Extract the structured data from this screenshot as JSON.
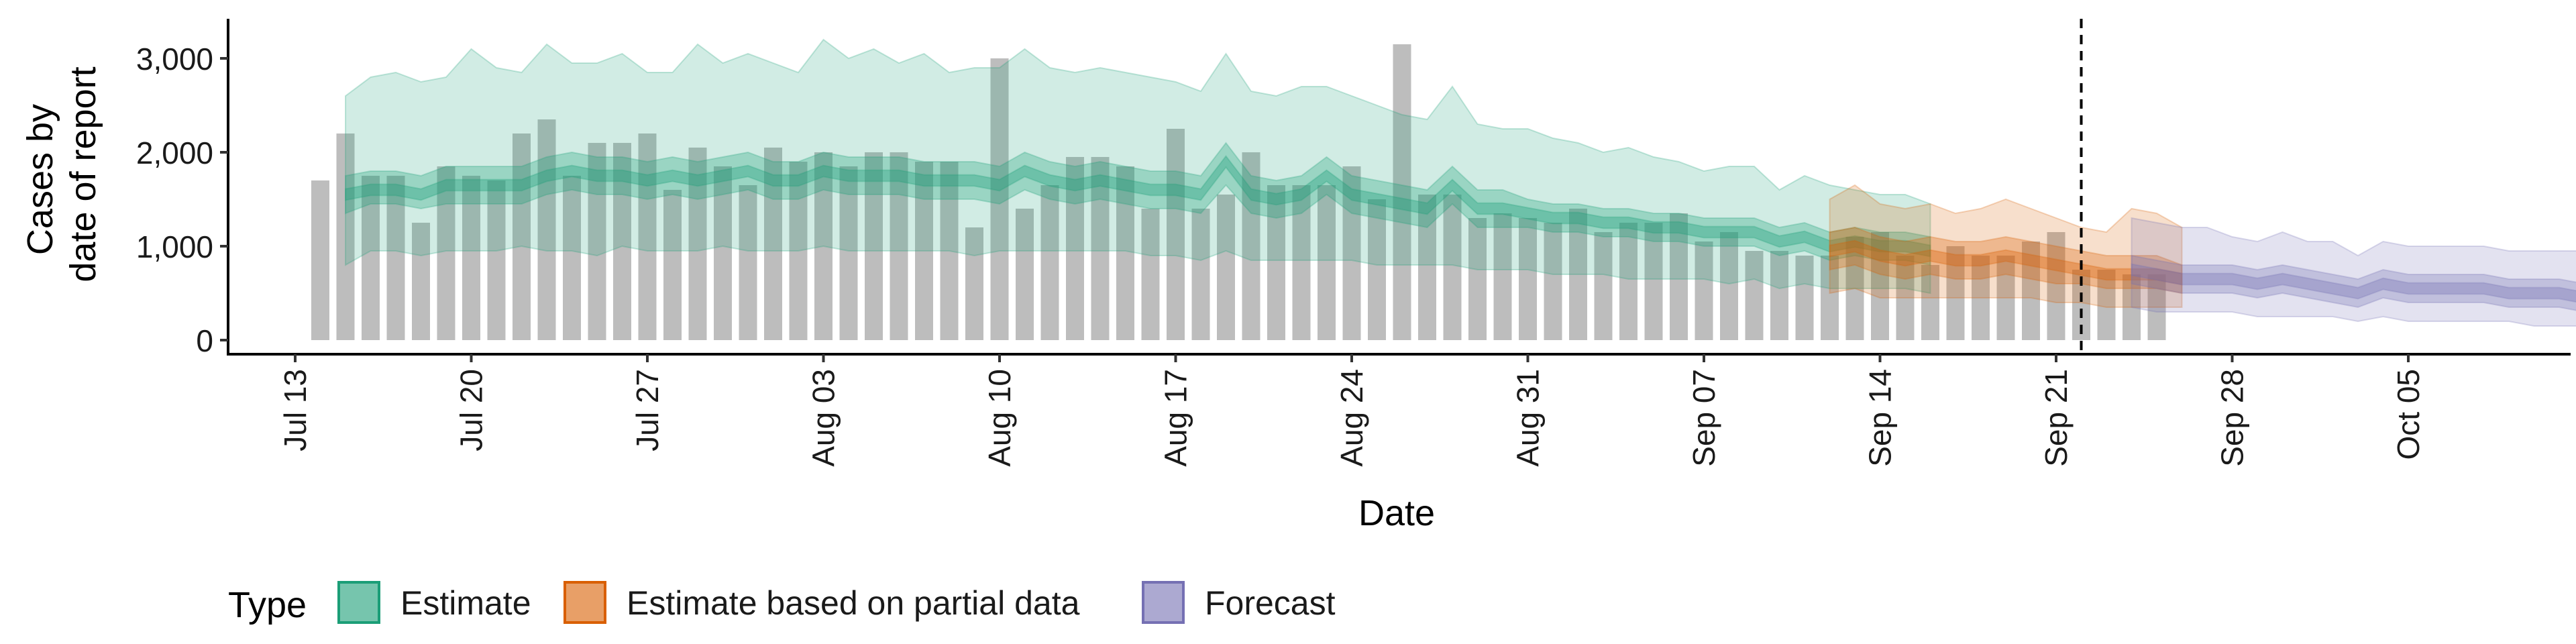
{
  "chart_data": {
    "type": "bar",
    "title": "",
    "xlabel": "Date",
    "ylabel": "Cases by date of report",
    "ylabel_lines": [
      "Cases by",
      "date of report"
    ],
    "x_ticks": [
      "Jul 13",
      "Jul 20",
      "Jul 27",
      "Aug 03",
      "Aug 10",
      "Aug 17",
      "Aug 24",
      "Aug 31",
      "Sep 07",
      "Sep 14",
      "Sep 21",
      "Sep 28",
      "Oct 05"
    ],
    "x_tick_dates": [
      "2020-07-13",
      "2020-07-20",
      "2020-07-27",
      "2020-08-03",
      "2020-08-10",
      "2020-08-17",
      "2020-08-24",
      "2020-08-31",
      "2020-09-07",
      "2020-09-14",
      "2020-09-21",
      "2020-09-28",
      "2020-10-05"
    ],
    "y_ticks": [
      "0",
      "1,000",
      "2,000",
      "3,000"
    ],
    "y_tick_values": [
      0,
      1000,
      2000,
      3000
    ],
    "xlim": [
      "2020-07-11",
      "2020-10-11"
    ],
    "ylim": [
      0,
      3400
    ],
    "grid": false,
    "vline_date": "2020-09-22",
    "vline_style": "dashed",
    "legend": {
      "position": "bottom",
      "title": "Type",
      "entries": [
        {
          "label": "Estimate",
          "color": "#1b9e77"
        },
        {
          "label": "Estimate based on partial data",
          "color": "#d95f02"
        },
        {
          "label": "Forecast",
          "color": "#7570b3"
        }
      ]
    },
    "bars": {
      "name": "Reported cases",
      "color": "#bdbdbd",
      "start_date": "2020-07-14",
      "values": [
        1700,
        2200,
        1750,
        1750,
        1250,
        1850,
        1750,
        1700,
        2200,
        2350,
        1750,
        2100,
        2100,
        2200,
        1600,
        2050,
        1850,
        1650,
        2050,
        1900,
        2000,
        1850,
        2000,
        2000,
        1900,
        1900,
        1200,
        3000,
        1400,
        1650,
        1950,
        1950,
        1850,
        1400,
        2250,
        1400,
        1550,
        2000,
        1650,
        1650,
        1650,
        1850,
        1500,
        3150,
        1550,
        1550,
        1300,
        1350,
        1300,
        1250,
        1400,
        1150,
        1250,
        1250,
        1350,
        1050,
        1150,
        950,
        950,
        900,
        900,
        1100,
        1150,
        900,
        800,
        1000,
        900,
        900,
        1050,
        1150,
        750,
        750,
        700,
        700
      ]
    },
    "series": [
      {
        "name": "Estimate",
        "color": "#1b9e77",
        "start_date": "2020-07-15",
        "median": [
          1550,
          1600,
          1600,
          1550,
          1650,
          1650,
          1650,
          1650,
          1750,
          1800,
          1750,
          1750,
          1700,
          1750,
          1700,
          1750,
          1800,
          1700,
          1700,
          1800,
          1750,
          1750,
          1750,
          1700,
          1700,
          1700,
          1650,
          1800,
          1700,
          1650,
          1700,
          1650,
          1600,
          1600,
          1550,
          1900,
          1550,
          1500,
          1550,
          1750,
          1550,
          1500,
          1450,
          1400,
          1650,
          1400,
          1400,
          1350,
          1300,
          1300,
          1250,
          1250,
          1200,
          1200,
          1150,
          1150,
          1150,
          1050,
          1100,
          1000,
          1050,
          1000,
          1000,
          950
        ],
        "lower_50": [
          1350,
          1450,
          1450,
          1400,
          1450,
          1450,
          1450,
          1450,
          1550,
          1600,
          1550,
          1550,
          1500,
          1550,
          1500,
          1550,
          1600,
          1500,
          1500,
          1600,
          1550,
          1550,
          1550,
          1500,
          1500,
          1500,
          1450,
          1600,
          1500,
          1450,
          1500,
          1450,
          1400,
          1400,
          1350,
          1650,
          1350,
          1300,
          1350,
          1550,
          1350,
          1300,
          1250,
          1200,
          1450,
          1200,
          1200,
          1200,
          1150,
          1150,
          1100,
          1100,
          1050,
          1050,
          1000,
          1000,
          1000,
          900,
          950,
          850,
          900,
          850,
          850,
          800
        ],
        "upper_50": [
          1750,
          1800,
          1800,
          1750,
          1850,
          1850,
          1850,
          1850,
          1950,
          2000,
          1950,
          1950,
          1900,
          1950,
          1900,
          1950,
          2000,
          1900,
          1900,
          2000,
          1950,
          1950,
          1950,
          1900,
          1900,
          1900,
          1850,
          2000,
          1900,
          1850,
          1900,
          1850,
          1800,
          1800,
          1750,
          2100,
          1750,
          1700,
          1750,
          1950,
          1750,
          1700,
          1650,
          1600,
          1850,
          1600,
          1600,
          1500,
          1450,
          1450,
          1400,
          1400,
          1350,
          1350,
          1300,
          1300,
          1300,
          1200,
          1250,
          1150,
          1200,
          1150,
          1150,
          1100
        ],
        "lower_90": [
          800,
          950,
          950,
          900,
          950,
          950,
          950,
          1000,
          950,
          950,
          900,
          1000,
          950,
          950,
          950,
          1000,
          950,
          950,
          950,
          1000,
          950,
          950,
          950,
          950,
          950,
          900,
          950,
          950,
          950,
          950,
          950,
          950,
          900,
          900,
          850,
          950,
          850,
          850,
          850,
          850,
          850,
          800,
          800,
          800,
          800,
          750,
          750,
          750,
          700,
          700,
          700,
          650,
          650,
          650,
          650,
          600,
          650,
          550,
          600,
          550,
          550,
          550,
          550,
          500
        ],
        "upper_90": [
          2600,
          2800,
          2850,
          2750,
          2800,
          3100,
          2900,
          2850,
          3150,
          2950,
          2950,
          3050,
          2850,
          2850,
          3150,
          2950,
          3050,
          2950,
          2850,
          3200,
          3000,
          3100,
          2950,
          3050,
          2850,
          2900,
          2900,
          3100,
          2900,
          2850,
          2900,
          2850,
          2800,
          2750,
          2650,
          3050,
          2650,
          2600,
          2700,
          2700,
          2600,
          2500,
          2400,
          2350,
          2700,
          2300,
          2250,
          2250,
          2150,
          2100,
          2000,
          2050,
          1950,
          1900,
          1800,
          1850,
          1850,
          1600,
          1750,
          1650,
          1600,
          1550,
          1550,
          1450
        ]
      },
      {
        "name": "Estimate based on partial data",
        "color": "#d95f02",
        "start_date": "2020-09-12",
        "median": [
          950,
          1000,
          900,
          850,
          900,
          850,
          850,
          900,
          850,
          800,
          750,
          700,
          700,
          700,
          650
        ],
        "lower_50": [
          750,
          800,
          700,
          650,
          700,
          650,
          650,
          700,
          650,
          600,
          600,
          550,
          550,
          550,
          500
        ],
        "upper_50": [
          1150,
          1200,
          1100,
          1050,
          1100,
          1050,
          1050,
          1100,
          1050,
          1000,
          950,
          900,
          900,
          900,
          800
        ],
        "lower_90": [
          500,
          550,
          450,
          450,
          450,
          450,
          450,
          450,
          450,
          400,
          400,
          350,
          350,
          350,
          350
        ],
        "upper_90": [
          1500,
          1650,
          1450,
          1400,
          1450,
          1350,
          1400,
          1500,
          1400,
          1300,
          1200,
          1150,
          1400,
          1350,
          1200
        ]
      },
      {
        "name": "Forecast",
        "color": "#7570b3",
        "start_date": "2020-09-24",
        "median": [
          750,
          700,
          650,
          650,
          650,
          600,
          650,
          600,
          550,
          500,
          600,
          550,
          550,
          550,
          550,
          500,
          500,
          500,
          450,
          400,
          350
        ],
        "lower_50": [
          600,
          550,
          500,
          500,
          500,
          450,
          500,
          450,
          400,
          350,
          450,
          400,
          400,
          400,
          400,
          350,
          350,
          350,
          300,
          250,
          200
        ],
        "upper_50": [
          900,
          850,
          800,
          800,
          800,
          750,
          800,
          750,
          700,
          650,
          750,
          700,
          700,
          700,
          700,
          650,
          650,
          650,
          600,
          550,
          500
        ],
        "lower_90": [
          350,
          300,
          300,
          300,
          300,
          250,
          250,
          250,
          250,
          200,
          250,
          200,
          200,
          200,
          200,
          200,
          150,
          150,
          150,
          150,
          100
        ],
        "upper_90": [
          1300,
          1250,
          1200,
          1200,
          1100,
          1050,
          1150,
          1050,
          1050,
          900,
          1050,
          1000,
          1000,
          1000,
          1000,
          950,
          950,
          950,
          950,
          950,
          1100
        ]
      }
    ]
  }
}
